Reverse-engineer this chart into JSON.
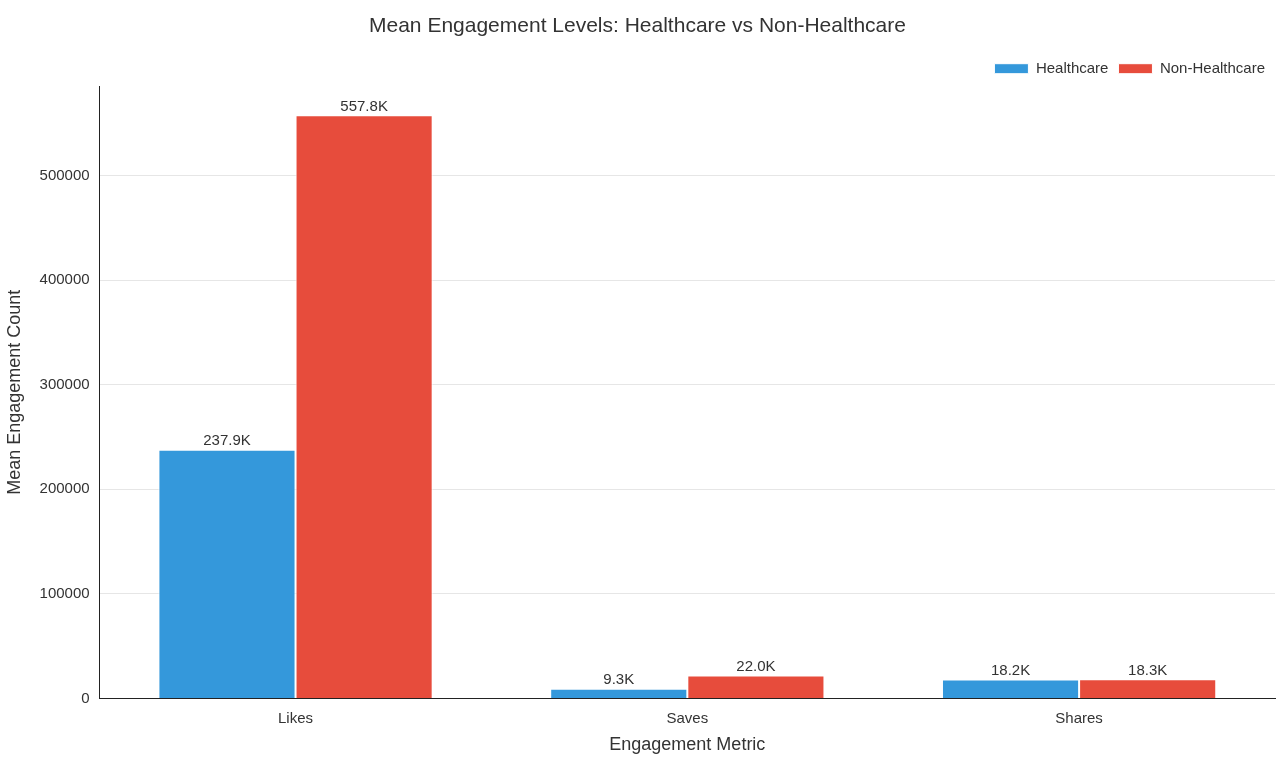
{
  "chart_data": {
    "type": "bar",
    "title": "Mean Engagement Levels: Healthcare vs Non-Healthcare",
    "xlabel": "Engagement Metric",
    "ylabel": "Mean Engagement Count",
    "categories": [
      "Likes",
      "Saves",
      "Shares"
    ],
    "series": [
      {
        "name": "Healthcare",
        "color": "#3498db",
        "values": [
          237900,
          9300,
          18200
        ],
        "value_labels": [
          "237.9K",
          "9.3K",
          "18.2K"
        ]
      },
      {
        "name": "Non-Healthcare",
        "color": "#e74c3c",
        "values": [
          557800,
          22000,
          18300
        ],
        "value_labels": [
          "557.8K",
          "22.0K",
          "18.3K"
        ]
      }
    ],
    "ylim": [
      0,
      585700
    ],
    "yticks": [
      0,
      100000,
      200000,
      300000,
      400000,
      500000
    ],
    "grid": "y",
    "legend": "top right"
  }
}
